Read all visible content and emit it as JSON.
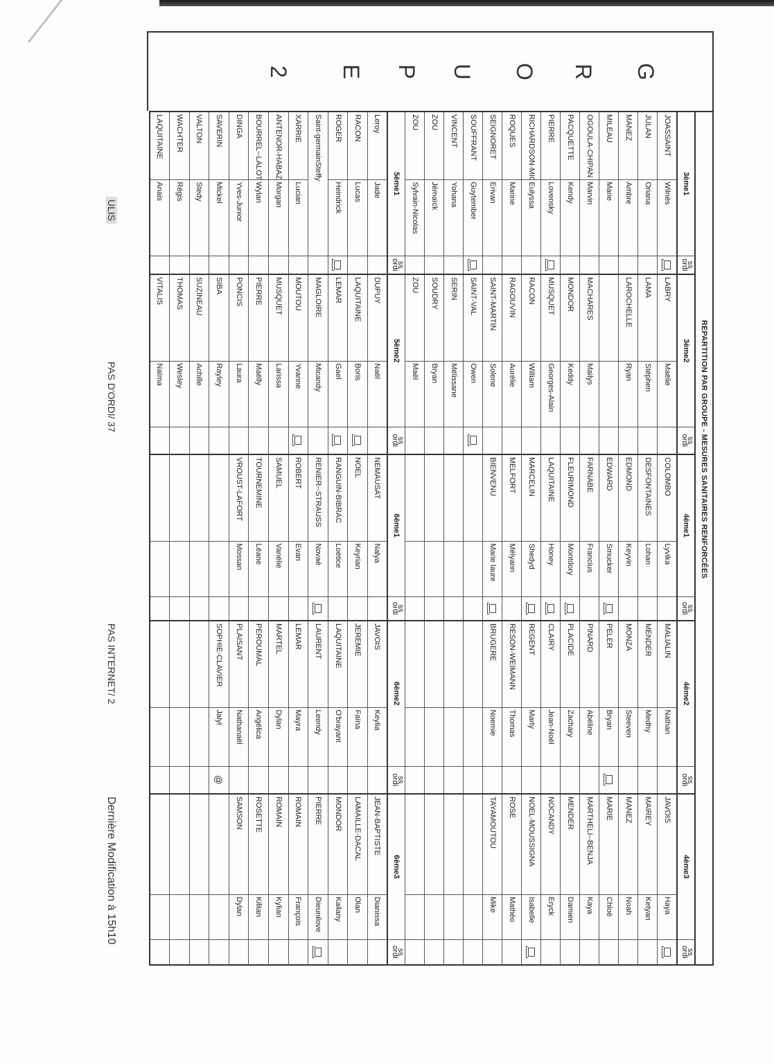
{
  "title": "REPARTITION PAR GROUPE - MESURES SANITAIRES RENFORCÉES",
  "group_letters": [
    "G",
    "R",
    "O",
    "U",
    "P",
    "E",
    "2"
  ],
  "labels": {
    "ss": "ss",
    "ordi": "ordi"
  },
  "blocks": [
    {
      "classes": [
        {
          "label": "3ème1",
          "rows": [
            {
              "nom": "JOASSAINT",
              "prenom": "Wilnès",
              "ordi": "computer-icon"
            },
            {
              "nom": "JULAN",
              "prenom": "Oriana"
            },
            {
              "nom": "MANEZ",
              "prenom": "Ambre"
            },
            {
              "nom": "MILEAU",
              "prenom": "Marie"
            },
            {
              "nom": "OGOULA-CHIPAN",
              "prenom": "Marvin"
            },
            {
              "nom": "PACQUETTE",
              "prenom": "Kendy"
            },
            {
              "nom": "PIERRE",
              "prenom": "Lovensky",
              "ordi": "computer-icon"
            },
            {
              "nom": "RICHARDSON-MIG",
              "prenom": "Eulyssa"
            },
            {
              "nom": "ROQUES",
              "prenom": "Marine"
            },
            {
              "nom": "SEIGNORET",
              "prenom": "Erivan"
            },
            {
              "nom": "SOUFFRANT",
              "prenom": "Guytember",
              "ordi": "computer-icon"
            },
            {
              "nom": "VINCENT",
              "prenom": "Yohana"
            },
            {
              "nom": "ZOU",
              "prenom": "Jémaïck"
            },
            {
              "nom": "ZOU",
              "prenom": "Sylvain-Nicolas"
            }
          ]
        },
        {
          "label": "3ème2",
          "rows": [
            {
              "nom": "LABRY",
              "prenom": "Maëlie"
            },
            {
              "nom": "LAMA",
              "prenom": "Stéphen"
            },
            {
              "nom": "LAROCHELLE",
              "prenom": "Ryan"
            },
            {
              "nom": "",
              "prenom": ""
            },
            {
              "nom": "MACHARES",
              "prenom": "Mailys"
            },
            {
              "nom": "MONDOR",
              "prenom": "Keddy"
            },
            {
              "nom": "MUSQUET",
              "prenom": "Georges-Alain"
            },
            {
              "nom": "RACON",
              "prenom": "William"
            },
            {
              "nom": "RAGOUVIN",
              "prenom": "Aurélie"
            },
            {
              "nom": "SAINT-MARTIN",
              "prenom": "Solene"
            },
            {
              "nom": "SAINT-VAL",
              "prenom": "Owen",
              "ordi": "computer-icon"
            },
            {
              "nom": "SERIN",
              "prenom": "Mélissane"
            },
            {
              "nom": "SOUDRY",
              "prenom": "Bryan"
            },
            {
              "nom": "ZOU",
              "prenom": "Maël"
            }
          ]
        },
        {
          "label": "4ème1",
          "rows": [
            {
              "nom": "COLOMBO",
              "prenom": "Lyvika"
            },
            {
              "nom": "DESFONTAINES",
              "prenom": "Lohan"
            },
            {
              "nom": "EDMOND",
              "prenom": "Keyvin"
            },
            {
              "nom": "EDWARD",
              "prenom": "Smucker",
              "ordi": "computer-icon"
            },
            {
              "nom": "FARNABE",
              "prenom": "Francius"
            },
            {
              "nom": "FLEURIMOND",
              "prenom": "Montdory",
              "ordi": "computer-icon"
            },
            {
              "nom": "LAQUITAINE",
              "prenom": "Honey",
              "ordi": "computer-icon"
            },
            {
              "nom": "MARCELIN",
              "prenom": "Shedyd",
              "ordi": "computer-icon"
            },
            {
              "nom": "MELFORT",
              "prenom": "Mélyann"
            },
            {
              "nom": "BIENVENU",
              "prenom": "Marie laure",
              "ordi": "computer-icon"
            }
          ]
        },
        {
          "label": "4ème2",
          "rows": [
            {
              "nom": "MALIALIN",
              "prenom": "Nathan"
            },
            {
              "nom": "MENDER",
              "prenom": "Medhy"
            },
            {
              "nom": "MONZA",
              "prenom": "Steeven"
            },
            {
              "nom": "PELER",
              "prenom": "Bryan",
              "ordi": "computer-icon"
            },
            {
              "nom": "PINARD",
              "prenom": "Abéline"
            },
            {
              "nom": "PLACIDE",
              "prenom": "Zachary"
            },
            {
              "nom": "CLAIRY",
              "prenom": "Jean-Noël"
            },
            {
              "nom": "REGENT",
              "prenom": "Marty"
            },
            {
              "nom": "RESON-WEIMANN",
              "prenom": "Thomas"
            },
            {
              "nom": "BRUGERE",
              "prenom": "Noemie"
            }
          ]
        },
        {
          "label": "4ème3",
          "rows": [
            {
              "nom": "JAVOIS",
              "prenom": "Haya",
              "ordi": "computer-icon"
            },
            {
              "nom": "MAIREY",
              "prenom": "Ketyan"
            },
            {
              "nom": "MANEZ",
              "prenom": "Noah"
            },
            {
              "nom": "MARIE",
              "prenom": "Chloé"
            },
            {
              "nom": "MARTHELI--BENJA",
              "prenom": "Kaya"
            },
            {
              "nom": "MENDER",
              "prenom": "Damien"
            },
            {
              "nom": "NOCANDY",
              "prenom": "Eryck"
            },
            {
              "nom": "NOEL-MOUSSIGNA",
              "prenom": "Isabelle",
              "ordi": "computer-icon"
            },
            {
              "nom": "ROSE",
              "prenom": "Mathéo"
            },
            {
              "nom": "TAYAMOUTOU",
              "prenom": "Mike"
            }
          ]
        }
      ]
    },
    {
      "classes": [
        {
          "label": "5ème1",
          "rows": [
            {
              "nom": "Leroy",
              "prenom": "Jade"
            },
            {
              "nom": "RACON",
              "prenom": "Lucas"
            },
            {
              "nom": "ROGER",
              "prenom": "Heindrick",
              "ordi": "computer-icon"
            },
            {
              "nom": "Saint-germainSteffy",
              "prenom": "",
              "merged": true
            },
            {
              "nom": "XARRIE",
              "prenom": "Lucian"
            },
            {
              "nom": "ANTENOR-HABAZ",
              "prenom": "Morgan"
            },
            {
              "nom": "BOURREL--LALOT",
              "prenom": "Wylan"
            },
            {
              "nom": "DINGA",
              "prenom": "Yves-Junior"
            },
            {
              "nom": "SAVERIN",
              "prenom": "Mickel"
            },
            {
              "nom": "VALTON",
              "prenom": "Stedy"
            },
            {
              "nom": "WACHTER",
              "prenom": "Régis"
            },
            {
              "nom": "LAQUITAINE",
              "prenom": "Anais"
            }
          ]
        },
        {
          "label": "5ème2",
          "rows": [
            {
              "nom": "DUPUY",
              "prenom": "Naël"
            },
            {
              "nom": "LAQUITAINE",
              "prenom": "Boris",
              "ordi": "computer-icon"
            },
            {
              "nom": "LEMAR",
              "prenom": "Gael",
              "ordi": "computer-icon"
            },
            {
              "nom": "MAGLOIRE",
              "prenom": "Micandy"
            },
            {
              "nom": "MOUTOU",
              "prenom": "Yvanne",
              "ordi": "computer-icon"
            },
            {
              "nom": "MUSQUET",
              "prenom": "Larissa"
            },
            {
              "nom": "PIERRE",
              "prenom": "Maëlly"
            },
            {
              "nom": "PONCIS",
              "prenom": "Laura"
            },
            {
              "nom": "SIBA",
              "prenom": "Rayley"
            },
            {
              "nom": "SUZINEAU",
              "prenom": "Achille"
            },
            {
              "nom": "THOMAS",
              "prenom": "Wesley"
            },
            {
              "nom": "VITALIS",
              "prenom": "Naïma"
            }
          ]
        },
        {
          "label": "6ème1",
          "rows": [
            {
              "nom": "NEMAUSAT",
              "prenom": "Nalya"
            },
            {
              "nom": "NOEL",
              "prenom": "Keyrian"
            },
            {
              "nom": "RANGUIN-BIBRAC",
              "prenom": "Loëtice"
            },
            {
              "nom": "RENIER--STRAUSS",
              "prenom": "Novaé",
              "ordi": "computer-icon"
            },
            {
              "nom": "ROBERT",
              "prenom": "Evan"
            },
            {
              "nom": "SAMUEL",
              "prenom": "Vanélie"
            },
            {
              "nom": "TOURNEMINE",
              "prenom": "Léane"
            },
            {
              "nom": "VROUST-LAFORT",
              "prenom": "Mossan"
            }
          ]
        },
        {
          "label": "6ème2",
          "rows": [
            {
              "nom": "JAVOIS",
              "prenom": "Keylia"
            },
            {
              "nom": "JEREMIE",
              "prenom": "Faïna"
            },
            {
              "nom": "LAQUITAINE",
              "prenom": "O'brayant"
            },
            {
              "nom": "LAURENT",
              "prenom": "Leendy"
            },
            {
              "nom": "LEMAR",
              "prenom": "Mayra"
            },
            {
              "nom": "MARTEL",
              "prenom": "Dylan"
            },
            {
              "nom": "PEROUMAL",
              "prenom": "Angélica"
            },
            {
              "nom": "PLAISANT",
              "prenom": "Nathanaël"
            },
            {
              "nom": "SOPHIE-CLAVIER",
              "prenom": "Jalyl",
              "ordi": "@"
            }
          ]
        },
        {
          "label": "6ème3",
          "rows": [
            {
              "nom": "JEAN-BAPTISTE",
              "prenom": "Dianissa"
            },
            {
              "nom": "LAMAILLE-DACAL",
              "prenom": "Olan"
            },
            {
              "nom": "MONDOR",
              "prenom": "Kailany"
            },
            {
              "nom": "PIERRE",
              "prenom": "Dieunilove",
              "ordi": "computer-icon"
            },
            {
              "nom": "ROMAIN",
              "prenom": "François"
            },
            {
              "nom": "ROMAIN",
              "prenom": "Kylian"
            },
            {
              "nom": "ROSETTE",
              "prenom": "Killian"
            },
            {
              "nom": "SAMSON",
              "prenom": "Dylan"
            }
          ]
        }
      ]
    }
  ],
  "footer": {
    "ulis": "ULIS",
    "no_computer": "PAS D'ORDI/ 37",
    "no_internet": "PAS INTERNET/ 2",
    "last_modified": "Dernière Modification à 15h10"
  }
}
